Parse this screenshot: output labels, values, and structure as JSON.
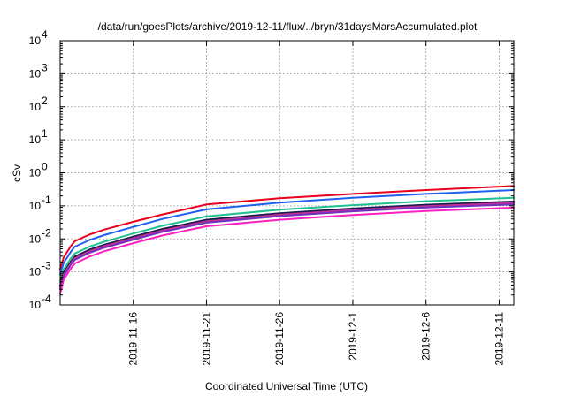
{
  "chart_data": {
    "type": "line",
    "title": "/data/run/goesPlots/archive/2019-12-11/flux/../bryn/31daysMarsAccumulated.plot",
    "xlabel": "Coordinated Universal Time (UTC)",
    "ylabel": "cSv",
    "yscale": "log",
    "ylim": [
      0.0001,
      10000
    ],
    "xlim": [
      "2019-11-11",
      "2019-12-12"
    ],
    "grid": true,
    "x_ticks": [
      "2019-11-16",
      "2019-11-21",
      "2019-11-26",
      "2019-12-1",
      "2019-12-6",
      "2019-12-11"
    ],
    "y_ticks": [
      {
        "value": 0.0001,
        "base": "10",
        "exp": "-4"
      },
      {
        "value": 0.001,
        "base": "10",
        "exp": "-3"
      },
      {
        "value": 0.01,
        "base": "10",
        "exp": "-2"
      },
      {
        "value": 0.1,
        "base": "10",
        "exp": "-1"
      },
      {
        "value": 1,
        "base": "10",
        "exp": "0"
      },
      {
        "value": 10,
        "base": "10",
        "exp": "1"
      },
      {
        "value": 100,
        "base": "10",
        "exp": "2"
      },
      {
        "value": 1000,
        "base": "10",
        "exp": "3"
      },
      {
        "value": 10000,
        "base": "10",
        "exp": "4"
      }
    ],
    "x": [
      "2019-11-11",
      "2019-11-11T06:00",
      "2019-11-11T18:00",
      "2019-11-12",
      "2019-11-13",
      "2019-11-14",
      "2019-11-16",
      "2019-11-18",
      "2019-11-21",
      "2019-11-26",
      "2019-12-01",
      "2019-12-06",
      "2019-12-12"
    ],
    "series": [
      {
        "color": "#e8001c",
        "values": [
          0.0012,
          0.0028,
          0.0062,
          0.0085,
          0.0135,
          0.019,
          0.033,
          0.055,
          0.11,
          0.17,
          0.23,
          0.3,
          0.4
        ]
      },
      {
        "color": "#2060f0",
        "values": [
          0.00085,
          0.0019,
          0.0042,
          0.0058,
          0.0092,
          0.013,
          0.023,
          0.04,
          0.078,
          0.125,
          0.175,
          0.23,
          0.3
        ]
      },
      {
        "color": "#20c090",
        "values": [
          0.0005,
          0.0012,
          0.0026,
          0.0036,
          0.0058,
          0.0082,
          0.0145,
          0.025,
          0.048,
          0.076,
          0.105,
          0.138,
          0.175
        ]
      },
      {
        "color": "#1a1a50",
        "values": [
          0.0004,
          0.00095,
          0.0021,
          0.0029,
          0.0047,
          0.0066,
          0.0117,
          0.02,
          0.038,
          0.06,
          0.083,
          0.108,
          0.135
        ]
      },
      {
        "color": "#c03090",
        "values": [
          0.00035,
          0.00085,
          0.0019,
          0.0026,
          0.0042,
          0.006,
          0.0105,
          0.018,
          0.034,
          0.054,
          0.075,
          0.098,
          0.122
        ]
      },
      {
        "color": "#7030c0",
        "values": [
          0.0003,
          0.00075,
          0.0017,
          0.0023,
          0.0038,
          0.0054,
          0.0095,
          0.0163,
          0.031,
          0.049,
          0.068,
          0.089,
          0.111
        ]
      },
      {
        "color": "#ff20c0",
        "values": [
          0.00022,
          0.0006,
          0.0013,
          0.0018,
          0.0029,
          0.0042,
          0.0074,
          0.0127,
          0.024,
          0.038,
          0.053,
          0.07,
          0.088
        ]
      }
    ]
  }
}
